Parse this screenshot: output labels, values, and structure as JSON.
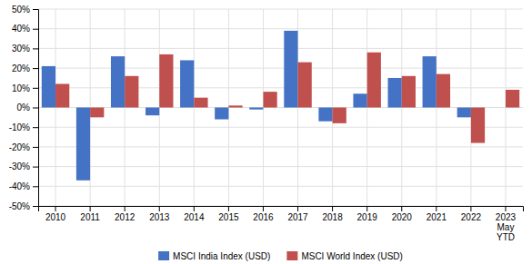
{
  "chart_data": {
    "type": "bar",
    "categories": [
      "2010",
      "2011",
      "2012",
      "2013",
      "2014",
      "2015",
      "2016",
      "2017",
      "2018",
      "2019",
      "2020",
      "2021",
      "2022",
      "2023\nMay\nYTD"
    ],
    "series": [
      {
        "name": "MSCI India Index (USD)",
        "color": "#4472C4",
        "values": [
          21,
          -37,
          26,
          -4,
          24,
          -6,
          -1,
          39,
          -7,
          7,
          15,
          26,
          -5,
          0
        ]
      },
      {
        "name": "MSCI World Index (USD)",
        "color": "#C0504D",
        "values": [
          12,
          -5,
          16,
          27,
          5,
          1,
          8,
          23,
          -8,
          28,
          16,
          17,
          -18,
          9
        ]
      }
    ],
    "ylim": [
      -50,
      50
    ],
    "yticks": [
      {
        "value": -50,
        "label": "-50%"
      },
      {
        "value": -40,
        "label": "-40%"
      },
      {
        "value": -30,
        "label": "-30%"
      },
      {
        "value": -20,
        "label": "-20%"
      },
      {
        "value": -10,
        "label": "-10%"
      },
      {
        "value": 0,
        "label": "0%"
      },
      {
        "value": 10,
        "label": "10%"
      },
      {
        "value": 20,
        "label": "20%"
      },
      {
        "value": 30,
        "label": "30%"
      },
      {
        "value": 40,
        "label": "40%"
      },
      {
        "value": 50,
        "label": "50%"
      }
    ],
    "grid": true,
    "legend": "bottom"
  }
}
